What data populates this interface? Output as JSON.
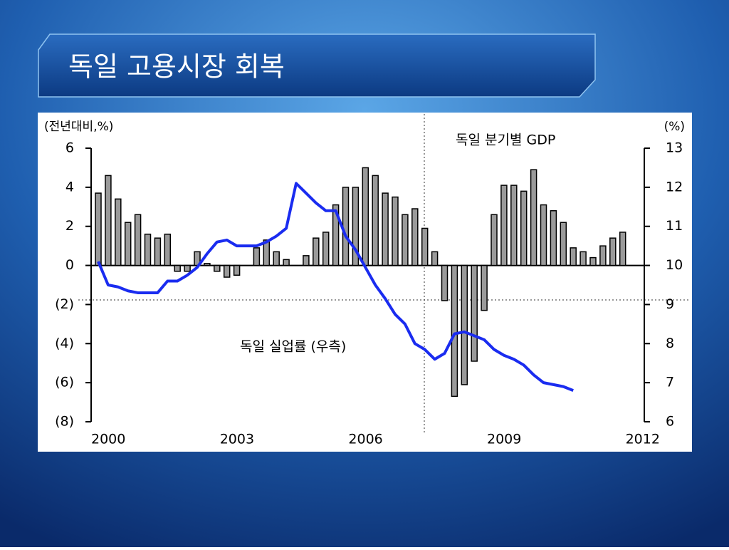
{
  "title": "독일  고용시장 회복",
  "chart_data": {
    "type": "bar",
    "left_axis_label": "(전년대비,%)",
    "right_axis_label": "(%)",
    "annotations": [
      "독일 분기별 GDP",
      "독일 실업률 (우측)"
    ],
    "categories": [
      "2000",
      null,
      null,
      null,
      null,
      null,
      null,
      null,
      null,
      null,
      null,
      null,
      null,
      "2003",
      null,
      null,
      null,
      null,
      null,
      null,
      null,
      null,
      null,
      null,
      null,
      null,
      "2006",
      null,
      null,
      null,
      null,
      null,
      null,
      null,
      null,
      null,
      null,
      null,
      null,
      null,
      "2009",
      null,
      null,
      null,
      null,
      null,
      null,
      null,
      null,
      null,
      null,
      null,
      null,
      null,
      "2012"
    ],
    "ylim": [
      -8,
      6
    ],
    "yticks": [
      {
        "value": -8,
        "label": "(8)"
      },
      {
        "value": -6,
        "label": "(6)"
      },
      {
        "value": -4,
        "label": "(4)"
      },
      {
        "value": -2,
        "label": "(2)"
      },
      0,
      2,
      4,
      6
    ],
    "y2lim": [
      6,
      13
    ],
    "y2ticks": [
      6,
      7,
      8,
      9,
      10,
      11,
      12,
      13
    ],
    "series": [
      {
        "name": "독일 분기별 GDP",
        "type": "bar",
        "color": "#9a9a9a",
        "values": [
          3.7,
          4.6,
          3.4,
          2.2,
          2.6,
          1.6,
          1.4,
          1.6,
          -0.3,
          -0.3,
          0.7,
          0.1,
          -0.3,
          -0.6,
          -0.5,
          0,
          0.9,
          1.3,
          0.7,
          0.3,
          0,
          0.5,
          1.4,
          1.7,
          3.1,
          4.0,
          4.0,
          5.0,
          4.6,
          3.7,
          3.5,
          2.6,
          2.9,
          1.9,
          0.7,
          -1.8,
          -6.7,
          -6.1,
          -4.9,
          -2.3,
          2.6,
          4.1,
          4.1,
          3.8,
          4.9,
          3.1,
          2.8,
          2.2,
          0.9,
          0.7,
          0.4,
          1.0,
          1.4,
          1.7,
          null
        ]
      },
      {
        "name": "독일 실업률 (우측)",
        "type": "line",
        "axis": "y2",
        "color": "#1a2cf0",
        "values": [
          10.1,
          9.5,
          9.45,
          9.35,
          9.3,
          9.3,
          9.3,
          9.6,
          9.6,
          9.75,
          9.95,
          10.3,
          10.6,
          10.65,
          10.5,
          10.5,
          10.5,
          10.6,
          10.75,
          10.95,
          12.1,
          11.85,
          11.6,
          11.4,
          11.4,
          10.75,
          10.4,
          9.95,
          9.5,
          9.15,
          8.75,
          8.5,
          8.0,
          7.85,
          7.6,
          7.75,
          8.25,
          8.3,
          8.2,
          8.1,
          7.85,
          7.7,
          7.6,
          7.45,
          7.2,
          7.0,
          6.95,
          6.9,
          6.8,
          null,
          null,
          null,
          null,
          null,
          null
        ]
      }
    ]
  }
}
